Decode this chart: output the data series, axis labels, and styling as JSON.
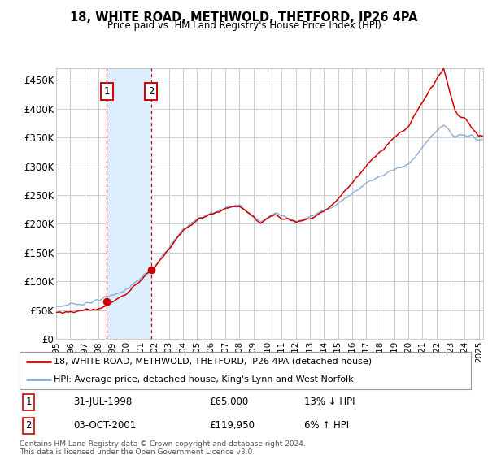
{
  "title": "18, WHITE ROAD, METHWOLD, THETFORD, IP26 4PA",
  "subtitle": "Price paid vs. HM Land Registry's House Price Index (HPI)",
  "ylabel_ticks": [
    "£0",
    "£50K",
    "£100K",
    "£150K",
    "£200K",
    "£250K",
    "£300K",
    "£350K",
    "£400K",
    "£450K"
  ],
  "ytick_values": [
    0,
    50000,
    100000,
    150000,
    200000,
    250000,
    300000,
    350000,
    400000,
    450000
  ],
  "ylim": [
    0,
    470000
  ],
  "xlim_start": 1995.0,
  "xlim_end": 2025.3,
  "sale1_date": 1998.58,
  "sale1_price": 65000,
  "sale1_label": "1",
  "sale2_date": 2001.75,
  "sale2_price": 119950,
  "sale2_label": "2",
  "price_line_color": "#cc0000",
  "hpi_line_color": "#88aad4",
  "grid_color": "#cccccc",
  "bg_color": "#ffffff",
  "sale_region_color": "#ddeeff",
  "sale_marker_color": "#cc0000",
  "legend_line1": "18, WHITE ROAD, METHWOLD, THETFORD, IP26 4PA (detached house)",
  "legend_line2": "HPI: Average price, detached house, King's Lynn and West Norfolk",
  "table_row1": [
    "1",
    "31-JUL-1998",
    "£65,000",
    "13% ↓ HPI"
  ],
  "table_row2": [
    "2",
    "03-OCT-2001",
    "£119,950",
    "6% ↑ HPI"
  ],
  "footer": "Contains HM Land Registry data © Crown copyright and database right 2024.\nThis data is licensed under the Open Government Licence v3.0."
}
